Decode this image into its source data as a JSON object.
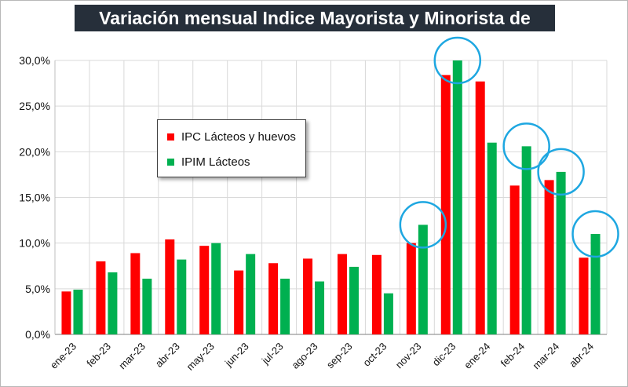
{
  "title": "Variación mensual Indice Mayorista y Minorista de Lácteos",
  "colors": {
    "ipc": "#ff0000",
    "ipim": "#00b050",
    "highlight_circle": "#1ea7e1",
    "title_bg": "#262f3a",
    "grid": "#d9d9d9"
  },
  "chart_data": {
    "type": "bar",
    "title": "Variación mensual Indice Mayorista y Minorista de Lácteos",
    "xlabel": "",
    "ylabel": "",
    "ylim": [
      0,
      30
    ],
    "yticks": [
      0,
      5,
      10,
      15,
      20,
      25,
      30
    ],
    "ytick_labels": [
      "0,0%",
      "5,0%",
      "10,0%",
      "15,0%",
      "20,0%",
      "25,0%",
      "30,0%"
    ],
    "grid": true,
    "legend_position": "upper-left-center",
    "categories": [
      "ene-23",
      "feb-23",
      "mar-23",
      "abr-23",
      "may-23",
      "jun-23",
      "jul-23",
      "ago-23",
      "sep-23",
      "oct-23",
      "nov-23",
      "dic-23",
      "ene-24",
      "feb-24",
      "mar-24",
      "abr-24"
    ],
    "series": [
      {
        "name": "IPC Lácteos y huevos",
        "color": "#ff0000",
        "values": [
          4.7,
          8.0,
          8.9,
          10.4,
          9.7,
          7.0,
          7.8,
          8.3,
          8.8,
          8.7,
          10.0,
          28.4,
          27.7,
          16.3,
          16.9,
          8.4
        ]
      },
      {
        "name": "IPIM Lácteos",
        "color": "#00b050",
        "values": [
          4.9,
          6.8,
          6.1,
          8.2,
          10.0,
          8.8,
          6.1,
          5.8,
          7.4,
          4.5,
          12.0,
          30.0,
          21.0,
          20.6,
          17.8,
          11.0
        ]
      }
    ],
    "highlighted_categories": [
      "nov-23",
      "dic-23",
      "feb-24",
      "mar-24",
      "abr-24"
    ]
  }
}
